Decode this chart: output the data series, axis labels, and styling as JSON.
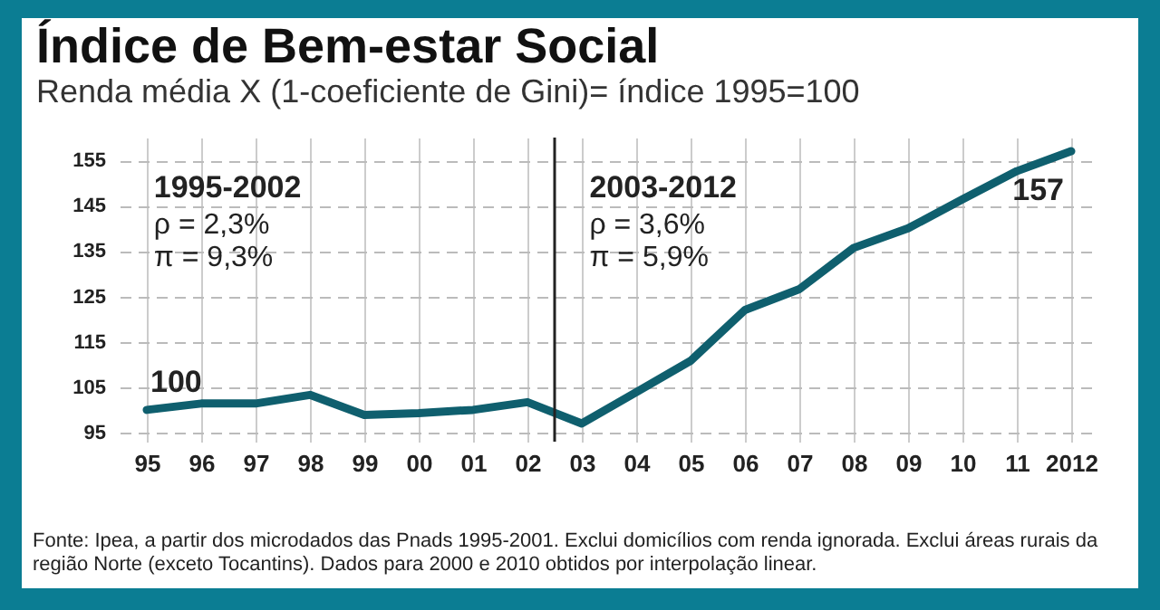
{
  "chart_data": {
    "type": "line",
    "title": "Índice de Bem-estar Social",
    "subtitle": "Renda média X (1-coeficiente de Gini)= índice  1995=100",
    "categories": [
      "95",
      "96",
      "97",
      "98",
      "99",
      "00",
      "01",
      "02",
      "03",
      "04",
      "05",
      "06",
      "07",
      "08",
      "09",
      "10",
      "11",
      "2012"
    ],
    "series": [
      {
        "color": "#0f5f6e",
        "values": [
          100,
          101.4,
          101.4,
          103.3,
          98.9,
          99.3,
          100,
          101.7,
          97,
          103.9,
          110.8,
          122,
          126.6,
          135.7,
          140,
          146.4,
          152.6,
          157
        ]
      }
    ],
    "ylim": [
      93,
      160
    ],
    "yticks": [
      95,
      105,
      115,
      125,
      135,
      145,
      155
    ],
    "grid": true,
    "ref_lines": [
      {
        "axis": "x",
        "value": "03",
        "color": "#222222"
      }
    ],
    "annotations": [
      {
        "text": "100",
        "x": "95",
        "y": 100
      },
      {
        "text": "157",
        "x": "2012",
        "y": 157
      },
      "1995-2002\nρ = 2,3%\nπ = 9,3%",
      "2003-2012\nρ = 3,6%\nπ = 5,9%",
      "Fonte: Ipea, a partir dos microdados das Pnads  1995-2001. Exclui domicílios com renda ignorada. Exclui áreas rurais da região Norte (exceto Tocantins). Dados para 2000 e 2010 obtidos por interpolação linear."
    ]
  }
}
